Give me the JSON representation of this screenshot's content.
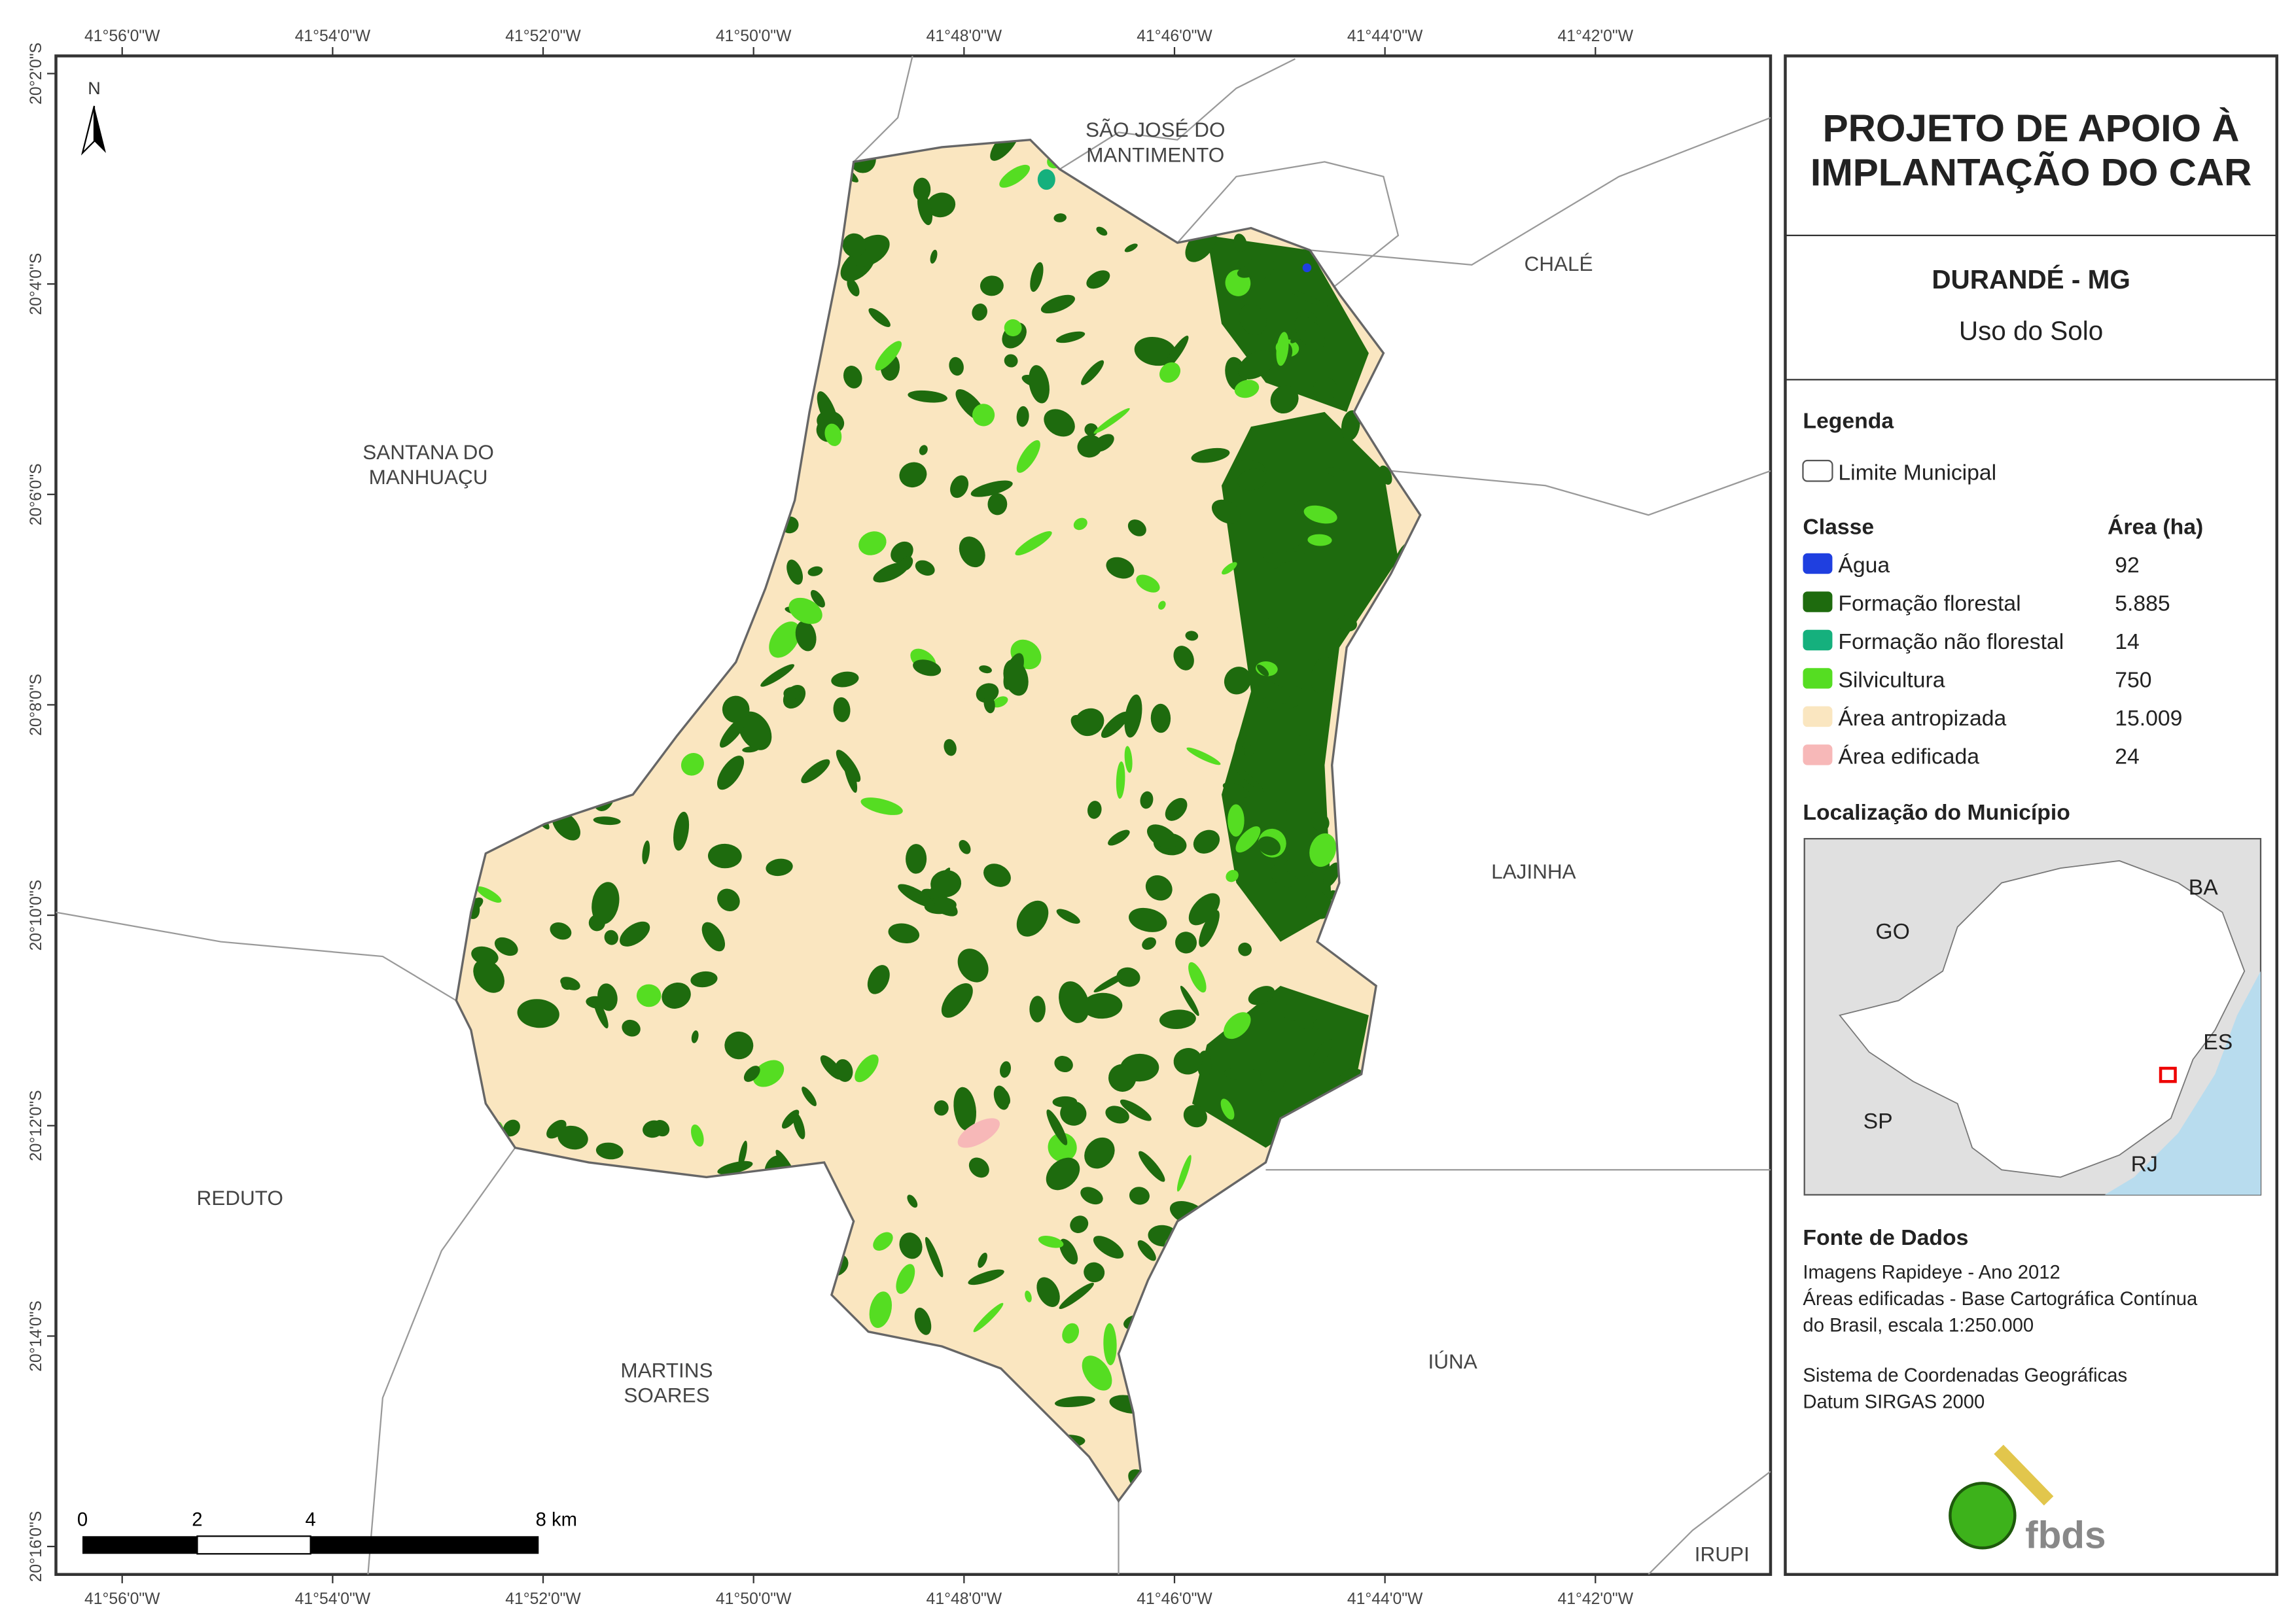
{
  "header": {
    "title": [
      "PROJETO DE APOIO À",
      "IMPLANTAÇÃO DO CAR"
    ],
    "municipality": "DURANDÉ - MG",
    "subtitle": "Uso do Solo"
  },
  "legend": {
    "title": "Legenda",
    "boundary": "Limite Municipal",
    "class_header": "Classe",
    "area_header": "Área (ha)",
    "classes": [
      {
        "name": "Água",
        "area": "92",
        "color": "#1f3fe0"
      },
      {
        "name": "Formação florestal",
        "area": "5.885",
        "color": "#1e6b0e"
      },
      {
        "name": "Formação não florestal",
        "area": "14",
        "color": "#15b07d"
      },
      {
        "name": "Silvicultura",
        "area": "750",
        "color": "#55dd22"
      },
      {
        "name": "Área antropizada",
        "area": "15.009",
        "color": "#fae6c0"
      },
      {
        "name": "Área edificada",
        "area": "24",
        "color": "#f7b8b8"
      }
    ]
  },
  "location": {
    "title": "Localização do Município",
    "states": [
      "GO",
      "BA",
      "ES",
      "SP",
      "RJ"
    ]
  },
  "sources": {
    "title": "Fonte de Dados",
    "lines": [
      "Imagens Rapideye - Ano 2012",
      "Áreas edificadas - Base Cartográfica Contínua",
      "do Brasil, escala 1:250.000",
      "Sistema de Coordenadas Geográficas",
      "Datum SIRGAS 2000"
    ]
  },
  "map": {
    "north": "N",
    "neighbors": [
      [
        "SÃO JOSÉ DO",
        "MANTIMENTO"
      ],
      [
        "CHALÉ"
      ],
      [
        "SANTANA DO",
        "MANHUAÇU"
      ],
      [
        "LAJINHA"
      ],
      [
        "REDUTO"
      ],
      [
        "MARTINS",
        "SOARES"
      ],
      [
        "IÚNA"
      ],
      [
        "IRUPI"
      ]
    ],
    "lon_ticks": [
      "41°56'0\"W",
      "41°54'0\"W",
      "41°52'0\"W",
      "41°50'0\"W",
      "41°48'0\"W",
      "41°46'0\"W",
      "41°44'0\"W",
      "41°42'0\"W"
    ],
    "lat_ticks": [
      "20°2'0\"S",
      "20°4'0\"S",
      "20°6'0\"S",
      "20°8'0\"S",
      "20°10'0\"S",
      "20°12'0\"S",
      "20°14'0\"S",
      "20°16'0\"S"
    ],
    "scale": [
      "0",
      "2",
      "4",
      "8 km"
    ]
  },
  "logo": "fbds"
}
